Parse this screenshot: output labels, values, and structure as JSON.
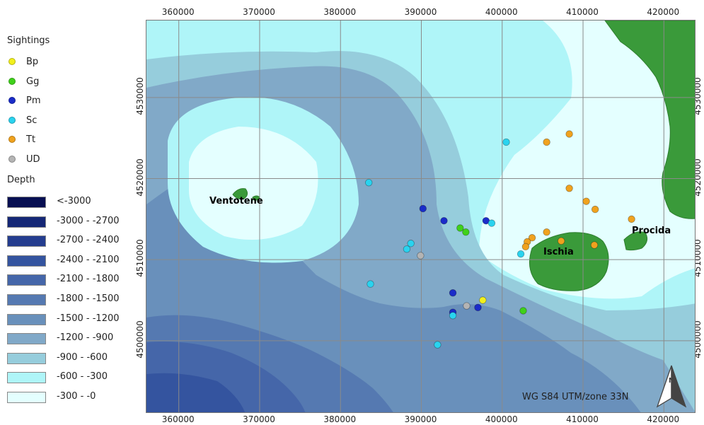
{
  "legend": {
    "sightings_title": "Sightings",
    "species": [
      {
        "label": "Bp",
        "color": "#f2f01c"
      },
      {
        "label": "Gg",
        "color": "#3fd11a"
      },
      {
        "label": "Pm",
        "color": "#1a2cc9"
      },
      {
        "label": "Sc",
        "color": "#2ad3ef"
      },
      {
        "label": "Tt",
        "color": "#f0a21e"
      },
      {
        "label": "UD",
        "color": "#b4b4b4"
      }
    ],
    "depth_title": "Depth",
    "depth_classes": [
      {
        "label": "<-3000",
        "color": "#070f52"
      },
      {
        "label": "-3000 - -2700",
        "color": "#152776"
      },
      {
        "label": "-2700 - -2400",
        "color": "#243d8f"
      },
      {
        "label": "-2400 - -2100",
        "color": "#34549f"
      },
      {
        "label": "-2100 - -1800",
        "color": "#4566a9"
      },
      {
        "label": "-1800 - -1500",
        "color": "#5579b1"
      },
      {
        "label": "-1500 - -1200",
        "color": "#6990bb"
      },
      {
        "label": "-1200 - -900",
        "color": "#81a9c8"
      },
      {
        "label": "-900 - -600",
        "color": "#96cddc"
      },
      {
        "label": "-600 - -300",
        "color": "#aff5f8"
      },
      {
        "label": "-300 - -0",
        "color": "#e4ffff"
      }
    ]
  },
  "map": {
    "x_ticks": [
      "360000",
      "370000",
      "380000",
      "390000",
      "400000",
      "410000",
      "420000"
    ],
    "y_ticks": [
      "4530000",
      "4520000",
      "4510000",
      "4500000"
    ],
    "x_tick_values": [
      360000,
      370000,
      380000,
      390000,
      400000,
      410000,
      420000
    ],
    "y_tick_values": [
      4530000,
      4520000,
      4510000,
      4500000
    ],
    "x_range": [
      356000,
      424000
    ],
    "y_range": [
      4491000,
      4539500
    ],
    "crs_label": "WG S84 UTM/zone 33N",
    "north_arrow_icon": "north-arrow-icon",
    "land_color": "#3a9a3a",
    "places": [
      "Ventotene",
      "Ischia",
      "Procida"
    ],
    "sightings": [
      {
        "species": "Sc",
        "x": 400500,
        "y": 4524500
      },
      {
        "species": "Tt",
        "x": 405500,
        "y": 4524500
      },
      {
        "species": "Tt",
        "x": 408300,
        "y": 4525500
      },
      {
        "species": "Sc",
        "x": 383500,
        "y": 4519500
      },
      {
        "species": "Tt",
        "x": 408300,
        "y": 4518800
      },
      {
        "species": "Tt",
        "x": 410400,
        "y": 4517200
      },
      {
        "species": "Tt",
        "x": 411500,
        "y": 4516200
      },
      {
        "species": "Tt",
        "x": 416000,
        "y": 4515000
      },
      {
        "species": "Pm",
        "x": 390200,
        "y": 4516300
      },
      {
        "species": "Pm",
        "x": 392800,
        "y": 4514800
      },
      {
        "species": "Pm",
        "x": 398000,
        "y": 4514800
      },
      {
        "species": "Sc",
        "x": 398700,
        "y": 4514500
      },
      {
        "species": "Gg",
        "x": 394800,
        "y": 4513900
      },
      {
        "species": "Gg",
        "x": 395500,
        "y": 4513400
      },
      {
        "species": "Tt",
        "x": 405500,
        "y": 4513400
      },
      {
        "species": "Tt",
        "x": 403700,
        "y": 4512700
      },
      {
        "species": "Tt",
        "x": 403100,
        "y": 4512200
      },
      {
        "species": "Tt",
        "x": 402900,
        "y": 4511600
      },
      {
        "species": "Tt",
        "x": 407300,
        "y": 4512300
      },
      {
        "species": "Tt",
        "x": 411400,
        "y": 4511800
      },
      {
        "species": "Sc",
        "x": 388700,
        "y": 4512000
      },
      {
        "species": "Sc",
        "x": 388200,
        "y": 4511300
      },
      {
        "species": "UD",
        "x": 389900,
        "y": 4510500
      },
      {
        "species": "Sc",
        "x": 402300,
        "y": 4510700
      },
      {
        "species": "Sc",
        "x": 383700,
        "y": 4507000
      },
      {
        "species": "Pm",
        "x": 393900,
        "y": 4505900
      },
      {
        "species": "Bp",
        "x": 397600,
        "y": 4505000
      },
      {
        "species": "UD",
        "x": 395600,
        "y": 4504300
      },
      {
        "species": "Pm",
        "x": 397000,
        "y": 4504100
      },
      {
        "species": "Pm",
        "x": 393900,
        "y": 4503500
      },
      {
        "species": "Sc",
        "x": 393900,
        "y": 4503100
      },
      {
        "species": "Gg",
        "x": 402600,
        "y": 4503700
      },
      {
        "species": "Sc",
        "x": 392000,
        "y": 4499500
      }
    ]
  }
}
